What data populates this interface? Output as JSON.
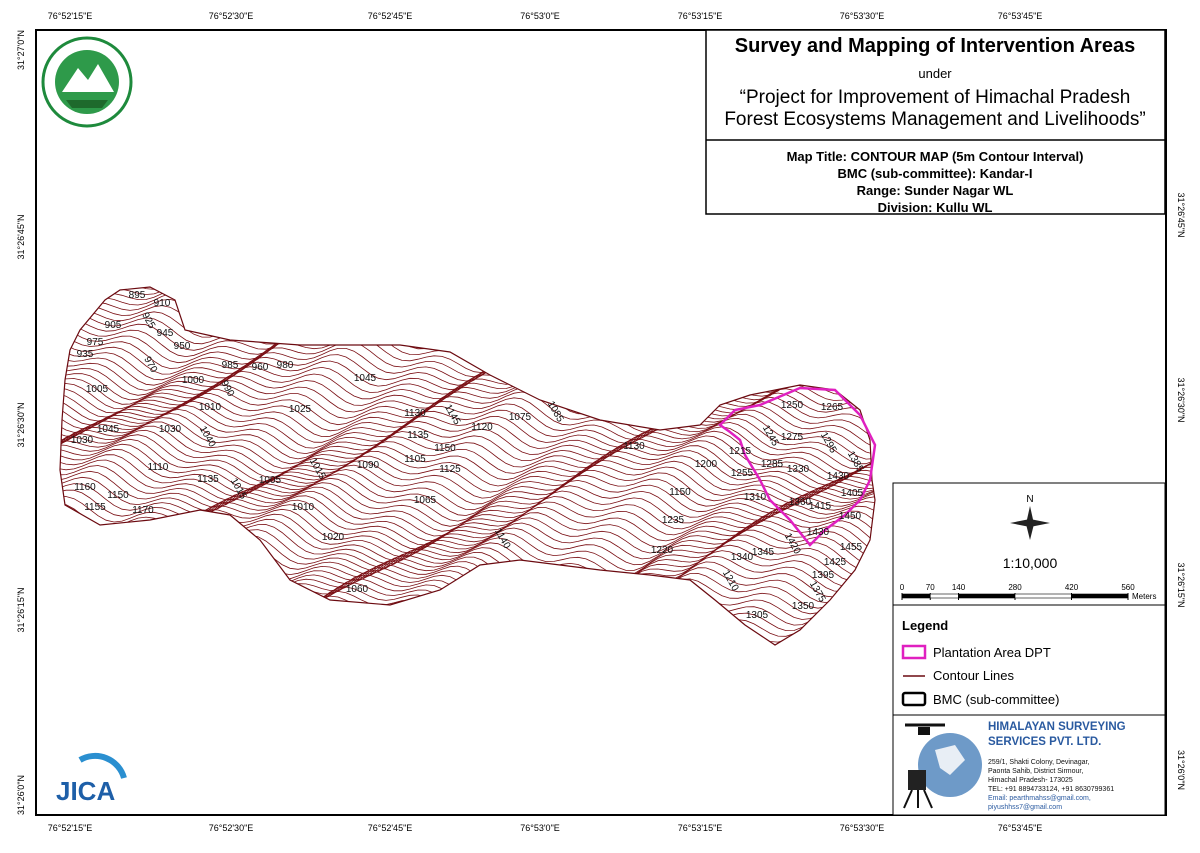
{
  "grid_labels": {
    "top": [
      "76°52'15\"E",
      "76°52'30\"E",
      "76°52'45\"E",
      "76°53'0\"E",
      "76°53'15\"E",
      "76°53'30\"E",
      "76°53'45\"E"
    ],
    "bottom": [
      "76°52'15\"E",
      "76°52'30\"E",
      "76°52'45\"E",
      "76°53'0\"E",
      "76°53'15\"E",
      "76°53'30\"E",
      "76°53'45\"E"
    ],
    "left": [
      "31°27'0\"N",
      "31°26'45\"N",
      "31°26'30\"N",
      "31°26'15\"N",
      "31°26'0\"N"
    ],
    "right": [
      "31°26'45\"N",
      "31°26'30\"N",
      "31°26'15\"N",
      "31°26'0\"N"
    ]
  },
  "title_block": {
    "title": "Survey and Mapping of Intervention Areas",
    "under": "under",
    "project_line1": "“Project for Improvement of Himachal Pradesh",
    "project_line2": "Forest Ecosystems Management and Livelihoods”"
  },
  "map_info": [
    "Map Title: CONTOUR MAP (5m Contour Interval)",
    "BMC (sub-committee): Kandar-I",
    "Range: Sunder Nagar WL",
    "Division: Kullu WL"
  ],
  "north": "N",
  "scale": "1:10,000",
  "scalebar": {
    "ticks": [
      0,
      70,
      140,
      280,
      420,
      560
    ],
    "unit": "Meters"
  },
  "legend": {
    "title": "Legend",
    "items": [
      "Plantation Area DPT",
      "Contour Lines",
      "BMC (sub-committee)"
    ]
  },
  "company": {
    "name_line1": "HIMALAYAN SURVEYING",
    "name_line2": "SERVICES PVT. LTD.",
    "address": [
      "259/1, Shakti Colony, Devinagar,",
      "Paonta Sahib, District Sirmour,",
      "Himachal Pradesh- 173025",
      "TEL: +91 8894733124, +91 8630799361",
      "Email: pearthmahss@gmail.com,",
      "piyushhss7@gmail.com"
    ]
  },
  "jica": "JICA",
  "contour_labels": [
    895,
    910,
    905,
    925,
    945,
    950,
    935,
    975,
    970,
    985,
    960,
    980,
    1000,
    990,
    1010,
    1045,
    1025,
    1130,
    1145,
    1135,
    1150,
    1120,
    1075,
    1085,
    1105,
    1125,
    1090,
    1065,
    1015,
    1010,
    1005,
    1020,
    1060,
    1140,
    1130,
    1150,
    1200,
    1215,
    1245,
    1250,
    1265,
    1275,
    1285,
    1295,
    1330,
    1255,
    1235,
    1220,
    1210,
    1310,
    1340,
    1345,
    1360,
    1385,
    1430,
    1405,
    1415,
    1430,
    1420,
    1450,
    1455,
    1425,
    1395,
    1375,
    1350,
    1305,
    1045,
    1030,
    1040,
    1030,
    1005,
    1110,
    1135,
    1015,
    1160,
    1150,
    1155,
    1170
  ]
}
